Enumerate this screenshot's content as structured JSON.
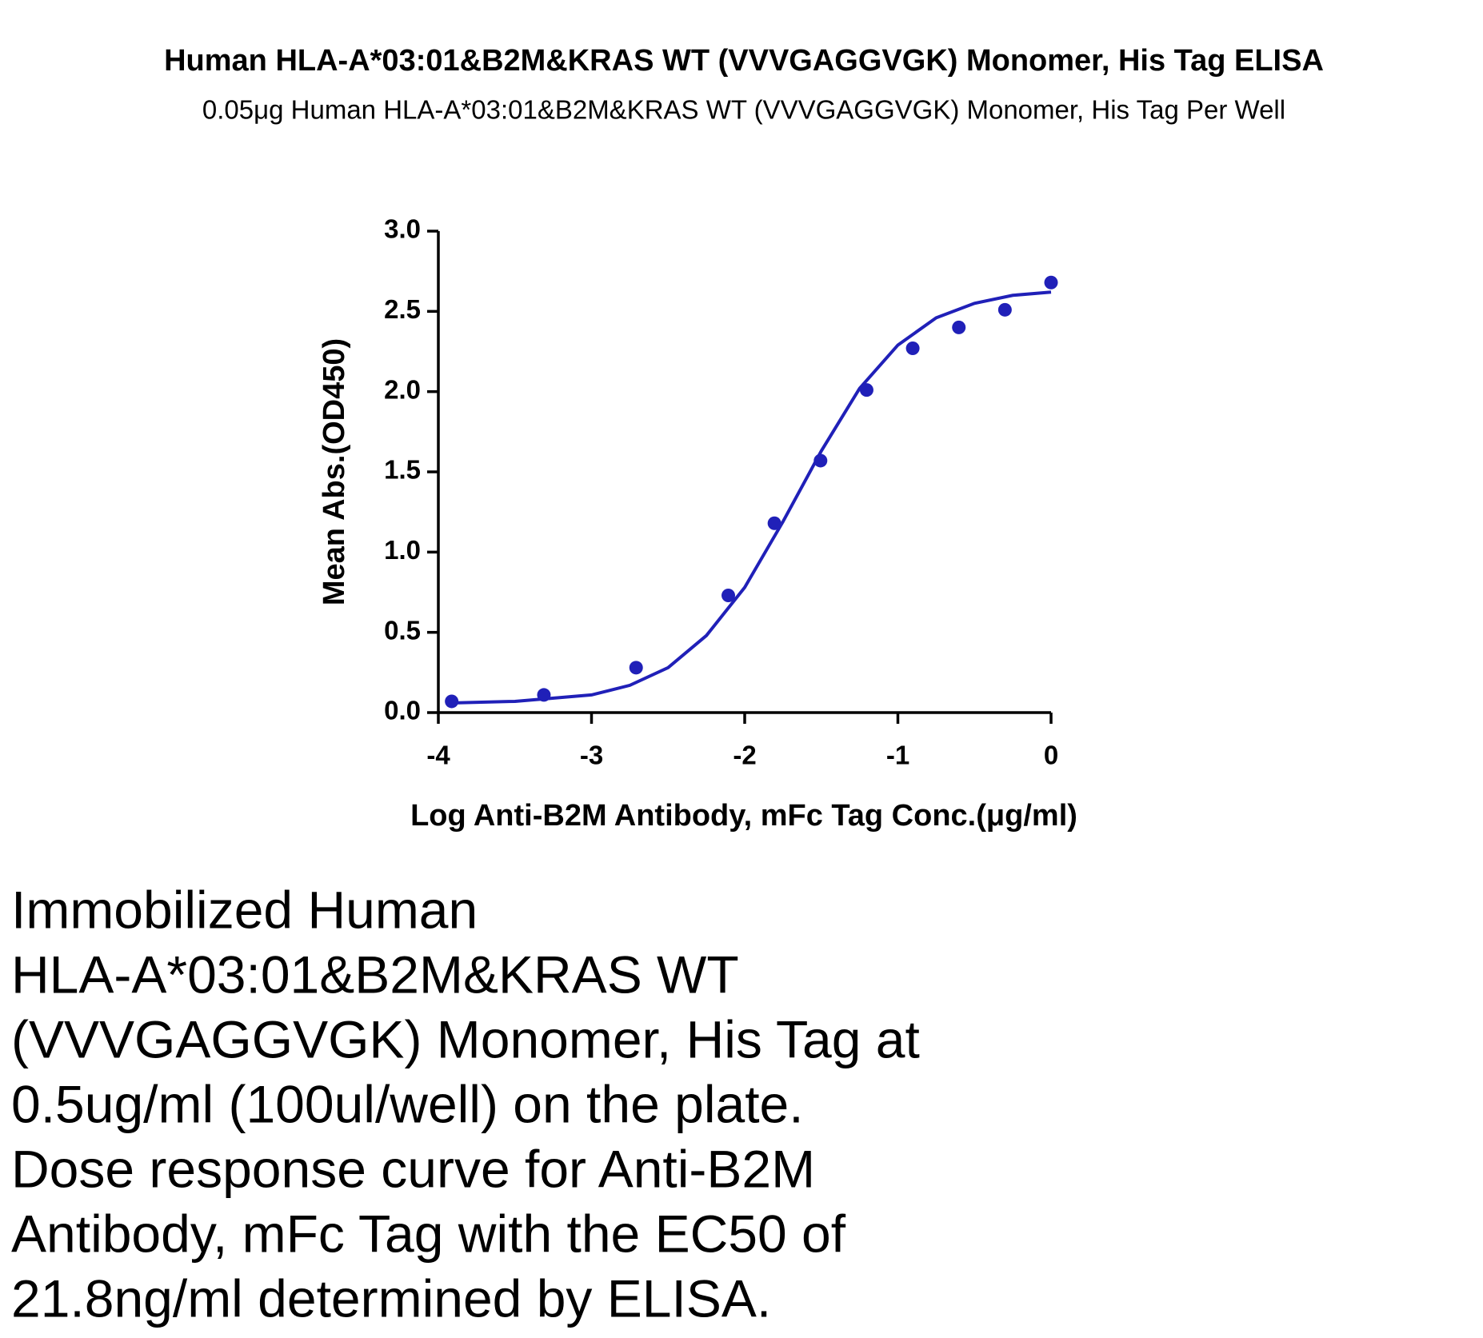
{
  "chart_data": {
    "type": "scatter",
    "title": "Human HLA-A*03:01&B2M&KRAS WT (VVVGAGGVGK) Monomer, His Tag ELISA",
    "subtitle": "0.05μg  Human HLA-A*03:01&B2M&KRAS WT (VVVGAGGVGK) Monomer, His Tag Per Well",
    "x_label": "Log Anti-B2M Antibody, mFc Tag Conc.(μg/ml)",
    "y_label": "Mean Abs.(OD450)",
    "x": [
      -3.913,
      -3.311,
      -2.709,
      -2.107,
      -1.806,
      -1.505,
      -1.204,
      -0.903,
      -0.602,
      -0.301,
      0
    ],
    "values": [
      0.07,
      0.11,
      0.28,
      0.73,
      1.18,
      1.57,
      2.01,
      2.27,
      2.4,
      2.51,
      2.68
    ],
    "fit": {
      "x": [
        -3.92,
        -3.5,
        -3.0,
        -2.75,
        -2.5,
        -2.25,
        -2.0,
        -1.75,
        -1.5,
        -1.25,
        -1.0,
        -0.75,
        -0.5,
        -0.25,
        0
      ],
      "values": [
        0.06,
        0.07,
        0.11,
        0.17,
        0.28,
        0.48,
        0.78,
        1.19,
        1.63,
        2.02,
        2.29,
        2.46,
        2.55,
        2.6,
        2.62
      ]
    },
    "color": "#2020b8",
    "xlim": [
      -4,
      0
    ],
    "ylim": [
      0,
      3
    ],
    "xticks": [
      -4,
      -3,
      -2,
      -1,
      0
    ],
    "yticks": [
      {
        "value": 0,
        "label": "0.0"
      },
      {
        "value": 0.5,
        "label": "0.5"
      },
      {
        "value": 1,
        "label": "1.0"
      },
      {
        "value": 1.5,
        "label": "1.5"
      },
      {
        "value": 2,
        "label": "2.0"
      },
      {
        "value": 2.5,
        "label": "2.5"
      },
      {
        "value": 3,
        "label": "3.0"
      }
    ]
  },
  "caption": [
    "Immobilized Human",
    "HLA-A*03:01&B2M&KRAS WT",
    "(VVVGAGGVGK) Monomer, His Tag at",
    "0.5ug/ml (100ul/well) on the plate.",
    "Dose response curve for Anti-B2M",
    "Antibody, mFc Tag with the EC50 of",
    "21.8ng/ml determined by ELISA."
  ]
}
